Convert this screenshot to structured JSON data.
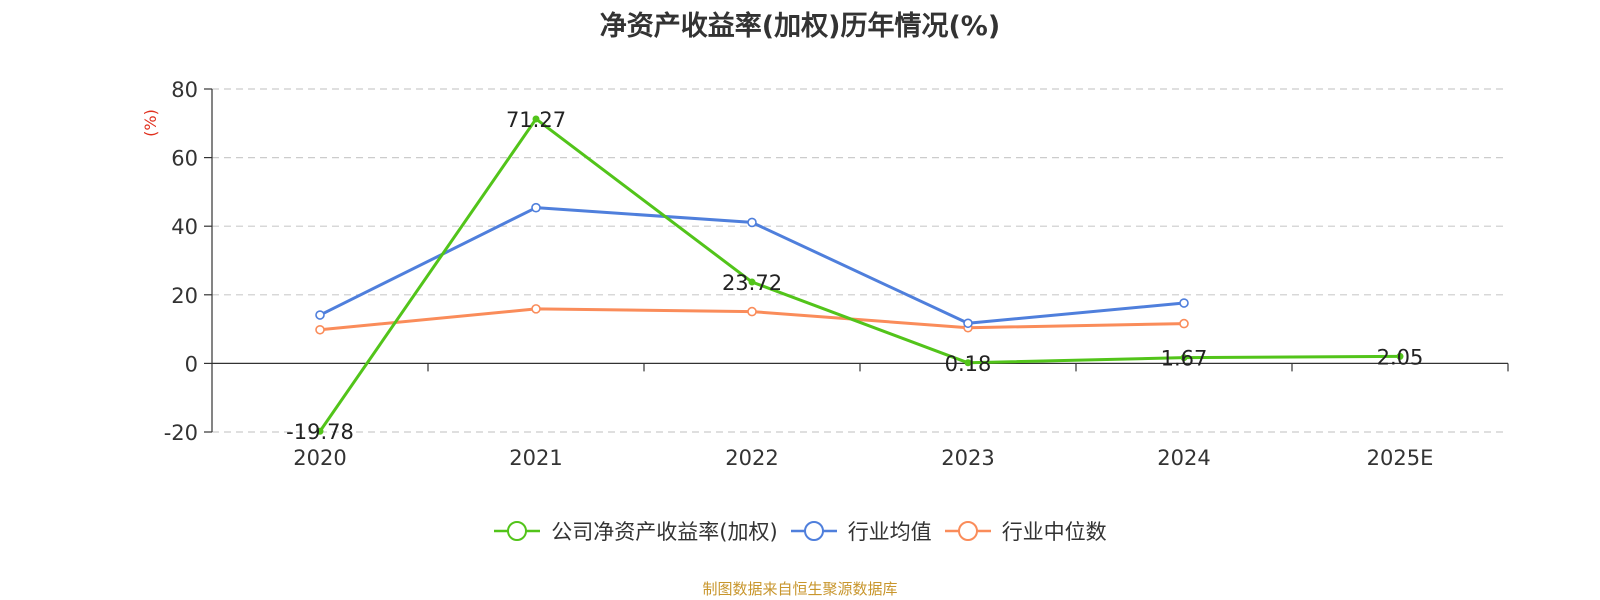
{
  "chart_data": {
    "type": "line",
    "title": "净资产收益率(加权)历年情况(%)",
    "ylabel": "(%)",
    "xlabel": "",
    "categories": [
      "2020",
      "2021",
      "2022",
      "2023",
      "2024",
      "2025E"
    ],
    "ylim": [
      -20,
      80
    ],
    "yticks": [
      80,
      60,
      40,
      20,
      0,
      -20
    ],
    "ytick_labels": [
      "80",
      "60",
      "40",
      "20",
      "0",
      "-20"
    ],
    "grid": true,
    "legend_position": "bottom",
    "series": [
      {
        "name": "公司净资产收益率(加权)",
        "color": "#52c41a",
        "values": [
          -19.78,
          71.27,
          23.72,
          0.18,
          1.67,
          2.05
        ],
        "labels": [
          "-19.78",
          "71.27",
          "23.72",
          "0.18",
          "1.67",
          "2.05"
        ]
      },
      {
        "name": "行业均值",
        "color": "#4f7fdc",
        "values": [
          14.1,
          45.4,
          41.1,
          11.7,
          17.6,
          null
        ]
      },
      {
        "name": "行业中位数",
        "color": "#fa8c5a",
        "values": [
          9.8,
          15.9,
          15.1,
          10.4,
          11.6,
          null
        ]
      }
    ],
    "source": "制图数据来自恒生聚源数据库"
  }
}
